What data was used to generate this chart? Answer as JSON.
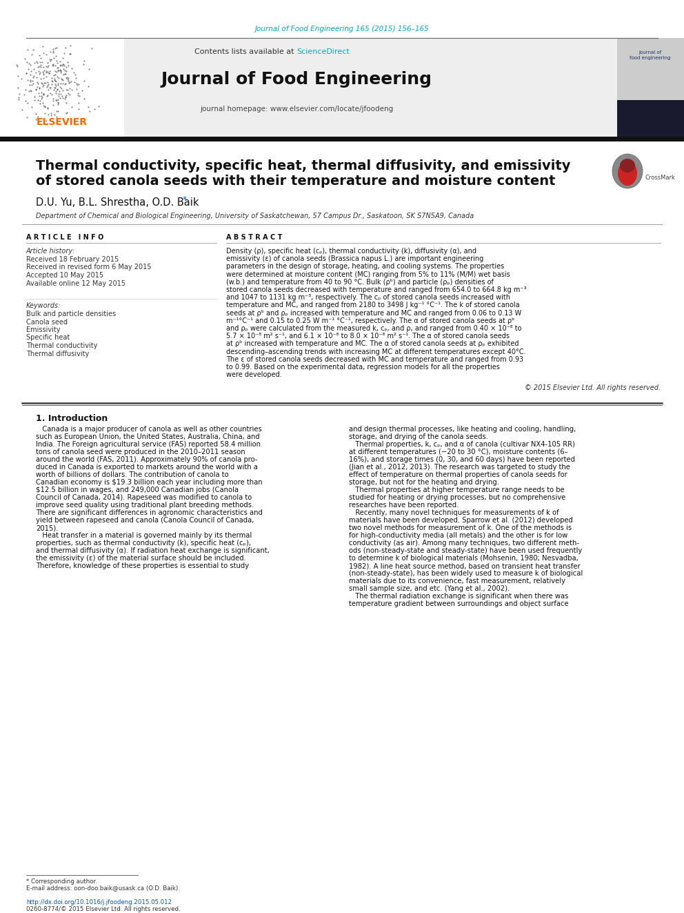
{
  "journal_ref": "Journal of Food Engineering 165 (2015) 156–165",
  "journal_ref_color": "#00aacc",
  "journal_name": "Journal of Food Engineering",
  "contents_text": "Contents lists available at ",
  "sciencedirect_text": "ScienceDirect",
  "sciencedirect_color": "#00aacc",
  "homepage_text": "journal homepage: www.elsevier.com/locate/jfoodeng",
  "elsevier_color": "#FF6600",
  "elsevier_text": "ELSEVIER",
  "title_line1": "Thermal conductivity, specific heat, thermal diffusivity, and emissivity",
  "title_line2": "of stored canola seeds with their temperature and moisture content",
  "authors": "D.U. Yu, B.L. Shrestha, O.D. Baik",
  "affiliation": "Department of Chemical and Biological Engineering, University of Saskatchewan, 57 Campus Dr., Saskatoon, SK S7N5A9, Canada",
  "article_info_header": "A R T I C L E   I N F O",
  "abstract_header": "A B S T R A C T",
  "article_history_label": "Article history:",
  "history_lines": [
    "Received 18 February 2015",
    "Received in revised form 6 May 2015",
    "Accepted 10 May 2015",
    "Available online 12 May 2015"
  ],
  "keywords_label": "Keywords:",
  "keywords": [
    "Bulk and particle densities",
    "Canola seed",
    "Emissivity",
    "Specific heat",
    "Thermal conductivity",
    "Thermal diffusivity"
  ],
  "abstract_text": "Density (ρ), specific heat (cₚ), thermal conductivity (k), diffusivity (α), and emissivity (ε) of canola seeds (Brassica napus L.) are important engineering parameters in the design of storage, heating, and cooling systems. The properties were determined at moisture content (MC) ranging from 5% to 11% (M/M) wet basis (w.b.) and temperature from 40 to 90 °C. Bulk (ρᵇ) and particle (ρₚ) densities of stored canola seeds decreased with temperature and ranged from 654.0 to 664.8 kg m⁻³ and 1047 to 1131 kg m⁻³, respectively. The cₚ of stored canola seeds increased with temperature and MC, and ranged from 2180 to 3498 J kg⁻¹ °C⁻¹. The k of stored canola seeds at ρᵇ and ρₚ increased with temperature and MC and ranged from 0.06 to 0.13 W m⁻¹°C⁻¹ and 0.15 to 0.25 W m⁻¹ °C⁻¹, respectively. The α of stored canola seeds at ρᵇ and ρₚ were calculated from the measured k, cₚ, and ρ, and ranged from 0.40 × 10⁻⁸ to 5.7 × 10⁻⁸ m² s⁻¹, and 6.1 × 10⁻⁸ to 8.0 × 10⁻⁸ m² s⁻¹. The α of stored canola seeds at ρᵇ increased with temperature and MC. The α of stored canola seeds at ρₚ exhibited descending–ascending trends with increasing MC at different temperatures except 40°C. The ε of stored canola seeds decreased with MC and temperature and ranged from 0.93 to 0.99. Based on the experimental data, regression models for all the properties were developed.",
  "copyright_text": "© 2015 Elsevier Ltd. All rights reserved.",
  "intro_header": "1. Introduction",
  "intro_col1_lines": [
    "   Canada is a major producer of canola as well as other countries",
    "such as European Union, the United States, Australia, China, and",
    "India. The Foreign agricultural service (FAS) reported 58.4 million",
    "tons of canola seed were produced in the 2010–2011 season",
    "around the world (FAS, 2011). Approximately 90% of canola pro-",
    "duced in Canada is exported to markets around the world with a",
    "worth of billions of dollars. The contribution of canola to",
    "Canadian economy is $19.3 billion each year including more than",
    "$12.5 billion in wages, and 249,000 Canadian jobs (Canola",
    "Council of Canada, 2014). Rapeseed was modified to canola to",
    "improve seed quality using traditional plant breeding methods.",
    "There are significant differences in agronomic characteristics and",
    "yield between rapeseed and canola (Canola Council of Canada,",
    "2015).",
    "   Heat transfer in a material is governed mainly by its thermal",
    "properties, such as thermal conductivity (k), specific heat (cₚ),",
    "and thermal diffusivity (α). If radiation heat exchange is significant,",
    "the emissivity (ε) of the material surface should be included.",
    "Therefore, knowledge of these properties is essential to study"
  ],
  "intro_col2_lines": [
    "and design thermal processes, like heating and cooling, handling,",
    "storage, and drying of the canola seeds.",
    "   Thermal properties, k, cₚ, and α of canola (cultivar NX4-105 RR)",
    "at different temperatures (−20 to 30 °C), moisture contents (6–",
    "16%), and storage times (0, 30, and 60 days) have been reported",
    "(Jian et al., 2012, 2013). The research was targeted to study the",
    "effect of temperature on thermal properties of canola seeds for",
    "storage, but not for the heating and drying.",
    "   Thermal properties at higher temperature range needs to be",
    "studied for heating or drying processes, but no comprehensive",
    "researches have been reported.",
    "   Recently, many novel techniques for measurements of k of",
    "materials have been developed. Sparrow et al. (2012) developed",
    "two novel methods for measurement of k. One of the methods is",
    "for high-conductivity media (all metals) and the other is for low",
    "conductivity (as air). Among many techniques, two different meth-",
    "ods (non-steady-state and steady-state) have been used frequently",
    "to determine k of biological materials (Mohsenin, 1980; Nesvadba,",
    "1982). A line heat source method, based on transient heat transfer",
    "(non-steady-state), has been widely used to measure k of biological",
    "materials due to its convenience, fast measurement, relatively",
    "small sample size, and etc. (Yang et al., 2002).",
    "   The thermal radiation exchange is significant when there was",
    "temperature gradient between surroundings and object surface"
  ],
  "footnote_lines": [
    "* Corresponding author.",
    "E-mail address: oon-doo.baik@usask.ca (O.D. Baik).",
    "",
    "http://dx.doi.org/10.1016/j.jfoodeng.2015.05.012",
    "0260-8774/© 2015 Elsevier Ltd. All rights reserved."
  ],
  "bg_color": "#ffffff",
  "header_bg": "#eeeeee",
  "black_bar_color": "#111111",
  "thin_line_color": "#333333"
}
